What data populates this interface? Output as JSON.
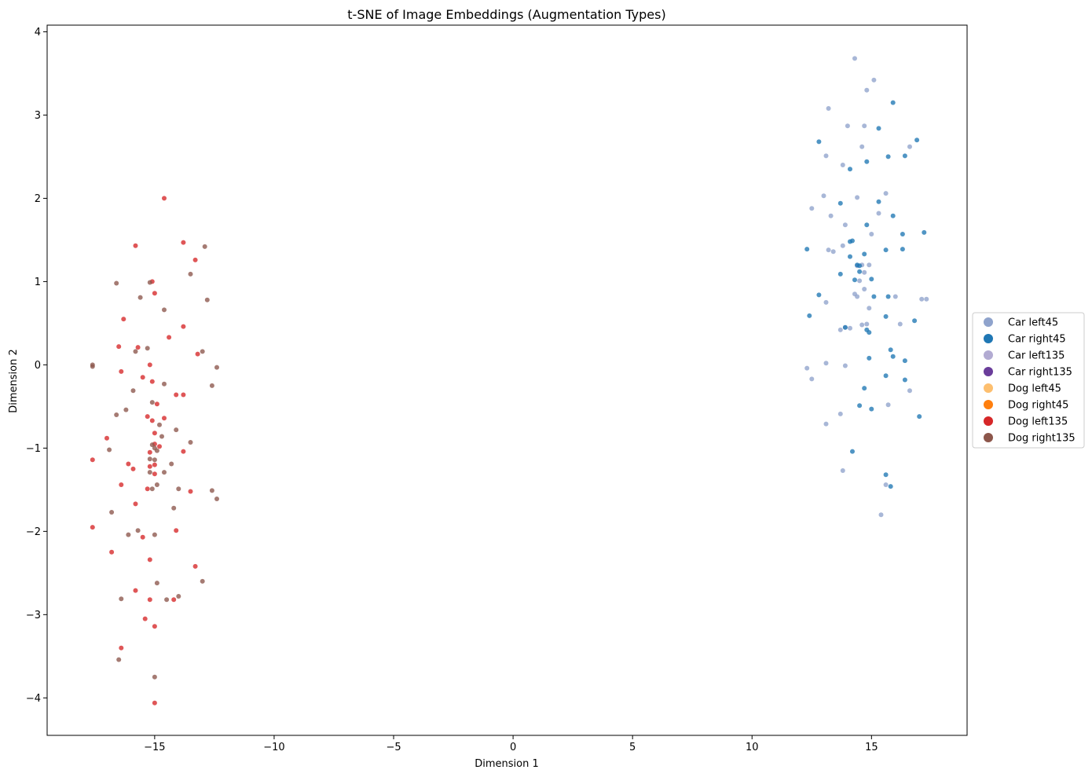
{
  "chart_data": {
    "type": "scatter",
    "title": "t-SNE of Image Embeddings (Augmentation Types)",
    "xlabel": "Dimension 1",
    "ylabel": "Dimension 2",
    "xlim": [
      -19.5,
      19
    ],
    "ylim": [
      -4.45,
      4.08
    ],
    "x_ticks": [
      -15,
      -10,
      -5,
      0,
      5,
      10,
      15
    ],
    "x_tick_labels": [
      "−15",
      "−10",
      "−5",
      "0",
      "5",
      "10",
      "15"
    ],
    "y_ticks": [
      -4,
      -3,
      -2,
      -1,
      0,
      1,
      2,
      3,
      4
    ],
    "y_tick_labels": [
      "−4",
      "−3",
      "−2",
      "−1",
      "0",
      "1",
      "2",
      "3",
      "4"
    ],
    "grid": false,
    "legend_placement": "outside-right",
    "series": [
      {
        "name": "Car left45",
        "color": "#8fa3cc",
        "points": [
          [
            14.3,
            3.68
          ],
          [
            14.8,
            3.3
          ],
          [
            15.1,
            3.42
          ],
          [
            13.2,
            3.08
          ],
          [
            14.0,
            2.87
          ],
          [
            14.7,
            2.87
          ],
          [
            14.6,
            2.62
          ],
          [
            16.6,
            2.62
          ],
          [
            13.1,
            2.51
          ],
          [
            13.8,
            2.4
          ],
          [
            13.0,
            2.03
          ],
          [
            14.4,
            2.01
          ],
          [
            15.6,
            2.06
          ],
          [
            12.5,
            1.88
          ],
          [
            13.3,
            1.79
          ],
          [
            15.3,
            1.82
          ],
          [
            13.9,
            1.68
          ],
          [
            15.0,
            1.57
          ],
          [
            13.8,
            1.43
          ],
          [
            13.2,
            1.38
          ],
          [
            13.4,
            1.36
          ],
          [
            14.9,
            1.2
          ],
          [
            14.6,
            1.2
          ],
          [
            14.4,
            1.19
          ],
          [
            14.7,
            1.11
          ],
          [
            14.5,
            1.01
          ],
          [
            14.7,
            0.91
          ],
          [
            14.3,
            0.85
          ],
          [
            14.4,
            0.82
          ],
          [
            16.0,
            0.82
          ],
          [
            17.1,
            0.79
          ],
          [
            17.3,
            0.79
          ],
          [
            13.1,
            0.75
          ],
          [
            14.9,
            0.68
          ],
          [
            14.6,
            0.48
          ],
          [
            14.8,
            0.49
          ],
          [
            16.2,
            0.49
          ],
          [
            13.9,
            0.45
          ],
          [
            13.7,
            0.42
          ],
          [
            14.1,
            0.44
          ],
          [
            13.1,
            0.02
          ],
          [
            13.9,
            -0.01
          ],
          [
            12.3,
            -0.04
          ],
          [
            12.5,
            -0.17
          ],
          [
            16.6,
            -0.31
          ],
          [
            15.7,
            -0.48
          ],
          [
            13.7,
            -0.59
          ],
          [
            13.1,
            -0.71
          ],
          [
            13.8,
            -1.27
          ],
          [
            15.6,
            -1.44
          ],
          [
            15.4,
            -1.8
          ]
        ]
      },
      {
        "name": "Car right45",
        "color": "#1f77b4",
        "points": [
          [
            15.9,
            3.15
          ],
          [
            15.3,
            2.84
          ],
          [
            12.8,
            2.68
          ],
          [
            16.9,
            2.7
          ],
          [
            16.4,
            2.51
          ],
          [
            15.7,
            2.5
          ],
          [
            14.8,
            2.44
          ],
          [
            14.1,
            2.35
          ],
          [
            15.3,
            1.96
          ],
          [
            13.7,
            1.94
          ],
          [
            15.9,
            1.79
          ],
          [
            14.8,
            1.68
          ],
          [
            17.2,
            1.59
          ],
          [
            16.3,
            1.57
          ],
          [
            14.1,
            1.48
          ],
          [
            14.2,
            1.49
          ],
          [
            12.3,
            1.39
          ],
          [
            15.6,
            1.38
          ],
          [
            16.3,
            1.39
          ],
          [
            14.7,
            1.33
          ],
          [
            14.1,
            1.3
          ],
          [
            14.4,
            1.2
          ],
          [
            14.5,
            1.19
          ],
          [
            14.5,
            1.12
          ],
          [
            13.7,
            1.09
          ],
          [
            14.3,
            1.02
          ],
          [
            15.0,
            1.03
          ],
          [
            12.8,
            0.84
          ],
          [
            15.1,
            0.82
          ],
          [
            15.7,
            0.82
          ],
          [
            12.4,
            0.59
          ],
          [
            15.6,
            0.58
          ],
          [
            16.8,
            0.53
          ],
          [
            13.9,
            0.45
          ],
          [
            14.8,
            0.42
          ],
          [
            14.9,
            0.39
          ],
          [
            15.8,
            0.18
          ],
          [
            15.9,
            0.1
          ],
          [
            14.9,
            0.08
          ],
          [
            16.4,
            0.05
          ],
          [
            15.6,
            -0.13
          ],
          [
            16.4,
            -0.18
          ],
          [
            14.7,
            -0.28
          ],
          [
            14.5,
            -0.49
          ],
          [
            15.0,
            -0.53
          ],
          [
            17.0,
            -0.62
          ],
          [
            14.2,
            -1.04
          ],
          [
            15.6,
            -1.32
          ],
          [
            15.8,
            -1.46
          ]
        ]
      },
      {
        "name": "Car left135",
        "color": "#b2abd2",
        "points": []
      },
      {
        "name": "Car right135",
        "color": "#6a3d9a",
        "points": []
      },
      {
        "name": "Dog left45",
        "color": "#fdbf6f",
        "points": []
      },
      {
        "name": "Dog right45",
        "color": "#ff7f0e",
        "points": []
      },
      {
        "name": "Dog left135",
        "color": "#d62728",
        "points": [
          [
            -14.6,
            2.0
          ],
          [
            -13.8,
            1.47
          ],
          [
            -15.8,
            1.43
          ],
          [
            -13.3,
            1.26
          ],
          [
            -15.1,
            1.0
          ],
          [
            -15.0,
            0.86
          ],
          [
            -16.3,
            0.55
          ],
          [
            -13.8,
            0.46
          ],
          [
            -14.4,
            0.33
          ],
          [
            -16.5,
            0.22
          ],
          [
            -15.7,
            0.21
          ],
          [
            -13.2,
            0.13
          ],
          [
            -15.2,
            0.0
          ],
          [
            -16.4,
            -0.08
          ],
          [
            -15.5,
            -0.15
          ],
          [
            -15.1,
            -0.2
          ],
          [
            -14.1,
            -0.36
          ],
          [
            -13.8,
            -0.36
          ],
          [
            -14.9,
            -0.47
          ],
          [
            -15.3,
            -0.62
          ],
          [
            -14.6,
            -0.64
          ],
          [
            -15.1,
            -0.67
          ],
          [
            -15.0,
            -0.82
          ],
          [
            -17.0,
            -0.88
          ],
          [
            -15.0,
            -0.95
          ],
          [
            -14.8,
            -0.98
          ],
          [
            -15.2,
            -1.05
          ],
          [
            -13.8,
            -1.04
          ],
          [
            -17.6,
            -1.14
          ],
          [
            -16.1,
            -1.19
          ],
          [
            -15.0,
            -1.2
          ],
          [
            -15.2,
            -1.22
          ],
          [
            -15.9,
            -1.25
          ],
          [
            -15.0,
            -1.31
          ],
          [
            -16.4,
            -1.44
          ],
          [
            -15.3,
            -1.49
          ],
          [
            -13.5,
            -1.52
          ],
          [
            -15.8,
            -1.67
          ],
          [
            -17.6,
            -1.95
          ],
          [
            -14.1,
            -1.99
          ],
          [
            -15.5,
            -2.07
          ],
          [
            -16.8,
            -2.25
          ],
          [
            -15.2,
            -2.34
          ],
          [
            -13.3,
            -2.42
          ],
          [
            -15.8,
            -2.71
          ],
          [
            -15.2,
            -2.82
          ],
          [
            -14.2,
            -2.82
          ],
          [
            -15.4,
            -3.05
          ],
          [
            -15.0,
            -3.14
          ],
          [
            -16.4,
            -3.4
          ],
          [
            -15.0,
            -4.06
          ]
        ]
      },
      {
        "name": "Dog right135",
        "color": "#8c564b",
        "points": [
          [
            -12.9,
            1.42
          ],
          [
            -16.6,
            0.98
          ],
          [
            -15.2,
            0.99
          ],
          [
            -13.5,
            1.09
          ],
          [
            -15.6,
            0.81
          ],
          [
            -12.8,
            0.78
          ],
          [
            -14.6,
            0.66
          ],
          [
            -15.8,
            0.16
          ],
          [
            -13.0,
            0.16
          ],
          [
            -15.3,
            0.2
          ],
          [
            -17.6,
            0.0
          ],
          [
            -17.6,
            -0.02
          ],
          [
            -12.4,
            -0.03
          ],
          [
            -14.6,
            -0.23
          ],
          [
            -12.6,
            -0.25
          ],
          [
            -15.9,
            -0.31
          ],
          [
            -15.1,
            -0.45
          ],
          [
            -16.2,
            -0.54
          ],
          [
            -16.6,
            -0.6
          ],
          [
            -14.8,
            -0.72
          ],
          [
            -14.1,
            -0.78
          ],
          [
            -14.7,
            -0.86
          ],
          [
            -13.5,
            -0.93
          ],
          [
            -15.1,
            -0.96
          ],
          [
            -15.0,
            -1.0
          ],
          [
            -14.9,
            -1.03
          ],
          [
            -16.9,
            -1.02
          ],
          [
            -15.2,
            -1.13
          ],
          [
            -14.3,
            -1.19
          ],
          [
            -15.0,
            -1.14
          ],
          [
            -15.2,
            -1.29
          ],
          [
            -14.6,
            -1.29
          ],
          [
            -14.9,
            -1.44
          ],
          [
            -15.1,
            -1.49
          ],
          [
            -14.0,
            -1.49
          ],
          [
            -12.6,
            -1.51
          ],
          [
            -12.4,
            -1.61
          ],
          [
            -14.2,
            -1.72
          ],
          [
            -16.8,
            -1.77
          ],
          [
            -15.7,
            -1.99
          ],
          [
            -16.1,
            -2.04
          ],
          [
            -15.0,
            -2.04
          ],
          [
            -13.0,
            -2.6
          ],
          [
            -14.9,
            -2.62
          ],
          [
            -14.0,
            -2.78
          ],
          [
            -16.4,
            -2.81
          ],
          [
            -14.5,
            -2.82
          ],
          [
            -16.5,
            -3.54
          ],
          [
            -15.0,
            -3.75
          ]
        ]
      }
    ]
  }
}
